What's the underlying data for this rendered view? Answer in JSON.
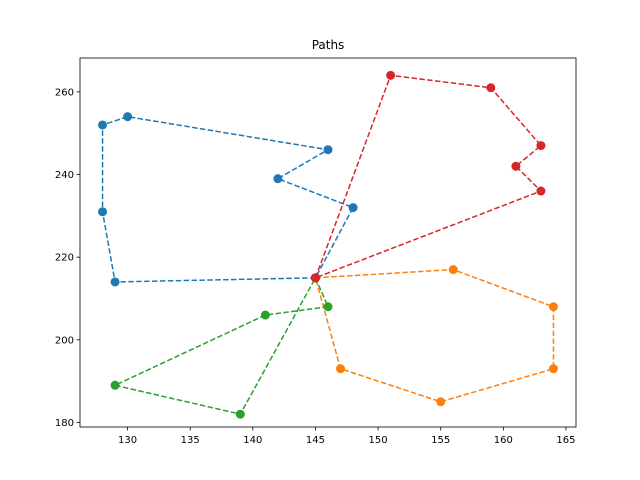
{
  "chart_data": {
    "type": "line",
    "title": "Paths",
    "xlabel": "",
    "ylabel": "",
    "xlim": [
      126.2,
      165.8
    ],
    "ylim": [
      178.9,
      268.2
    ],
    "xticks": [
      130,
      135,
      140,
      145,
      150,
      155,
      160,
      165
    ],
    "yticks": [
      180,
      200,
      220,
      240,
      260
    ],
    "grid": false,
    "line_style": "dashed",
    "marker": "circle",
    "series": [
      {
        "color": "#1f77b4",
        "points": [
          [
            145,
            215
          ],
          [
            129,
            214
          ],
          [
            128,
            231
          ],
          [
            128,
            252
          ],
          [
            130,
            254
          ],
          [
            146,
            246
          ],
          [
            142,
            239
          ],
          [
            148,
            232
          ],
          [
            145,
            215
          ]
        ]
      },
      {
        "color": "#ff7f0e",
        "points": [
          [
            145,
            215
          ],
          [
            156,
            217
          ],
          [
            164,
            208
          ],
          [
            164,
            193
          ],
          [
            155,
            185
          ],
          [
            147,
            193
          ],
          [
            145,
            215
          ]
        ]
      },
      {
        "color": "#2ca02c",
        "points": [
          [
            145,
            215
          ],
          [
            146,
            208
          ],
          [
            141,
            206
          ],
          [
            129,
            189
          ],
          [
            139,
            182
          ],
          [
            145,
            215
          ]
        ]
      },
      {
        "color": "#d62728",
        "points": [
          [
            145,
            215
          ],
          [
            151,
            264
          ],
          [
            159,
            261
          ],
          [
            163,
            247
          ],
          [
            161,
            242
          ],
          [
            163,
            236
          ],
          [
            145,
            215
          ]
        ]
      }
    ]
  }
}
